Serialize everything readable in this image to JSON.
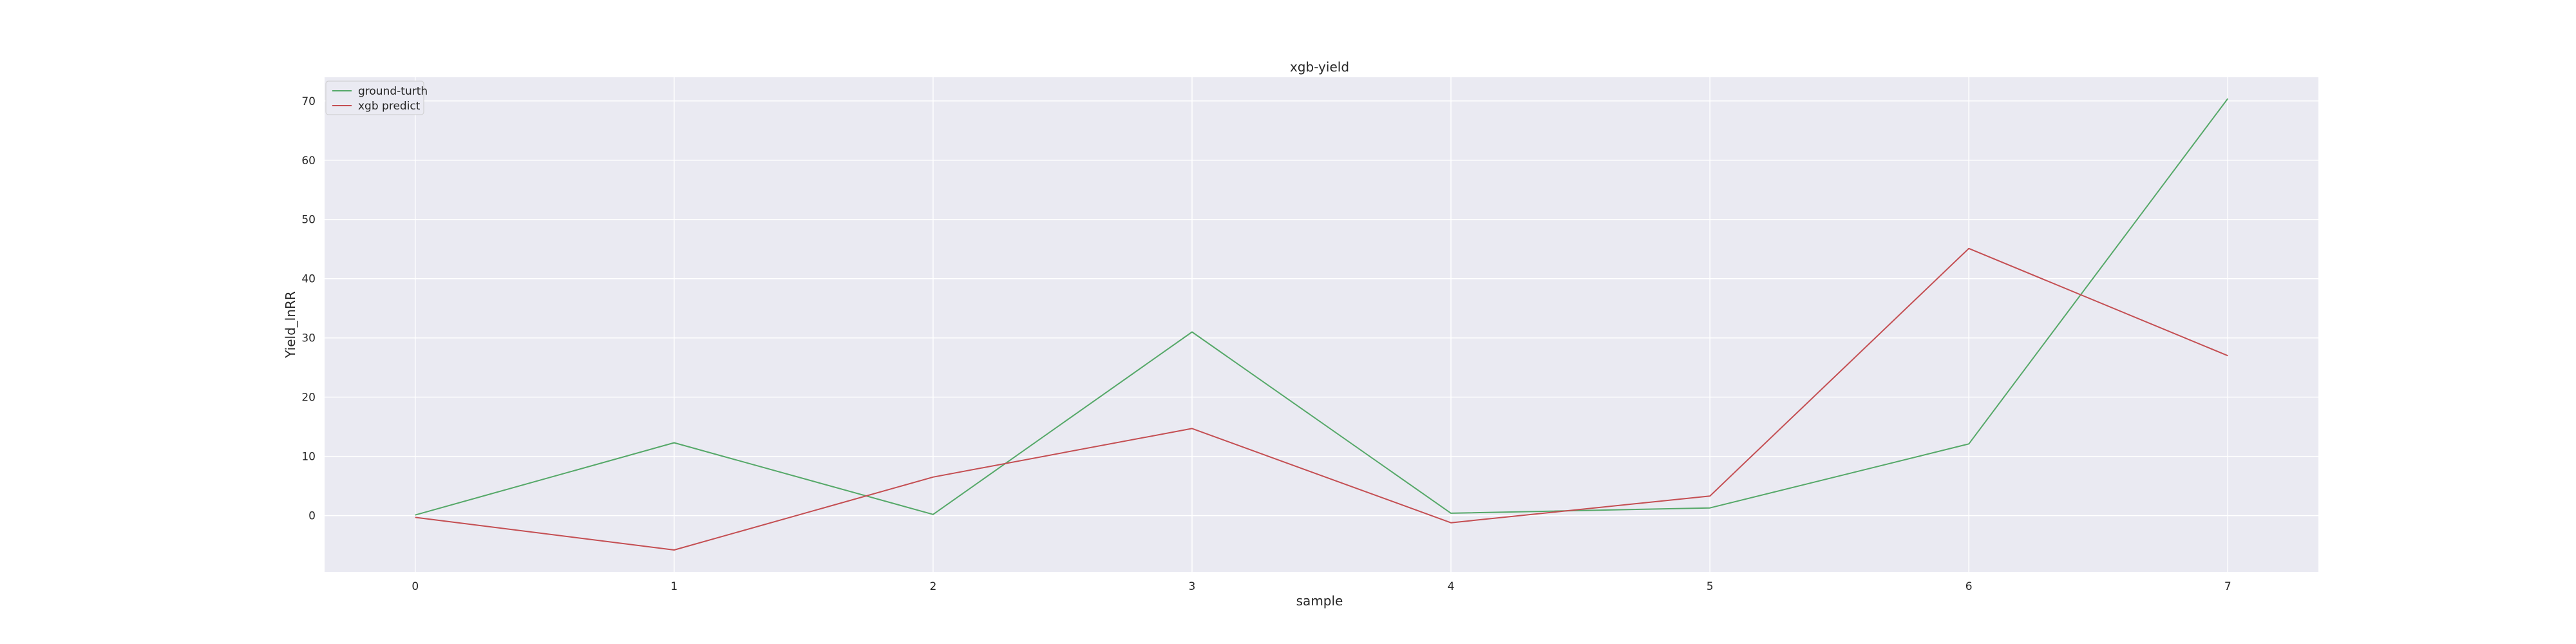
{
  "chart_data": {
    "type": "line",
    "title": "xgb-yield",
    "xlabel": "sample",
    "ylabel": "Yield_lnRR",
    "x": [
      0,
      1,
      2,
      3,
      4,
      5,
      6,
      7
    ],
    "xlim": [
      -0.35,
      7.35
    ],
    "ylim": [
      -9.5,
      74
    ],
    "xticks": [
      0,
      1,
      2,
      3,
      4,
      5,
      6,
      7
    ],
    "yticks": [
      0,
      10,
      20,
      30,
      40,
      50,
      60,
      70
    ],
    "grid": true,
    "legend_position": "top-left",
    "background": "#eaeaf2",
    "series": [
      {
        "name": "ground-turth",
        "color": "#55a868",
        "values": [
          0.1,
          12.3,
          0.2,
          31.0,
          0.4,
          1.3,
          12.1,
          70.4
        ]
      },
      {
        "name": "xgb predict",
        "color": "#c44e52",
        "values": [
          -0.3,
          -5.8,
          6.5,
          14.7,
          -1.2,
          3.3,
          45.1,
          27.0
        ]
      }
    ]
  }
}
